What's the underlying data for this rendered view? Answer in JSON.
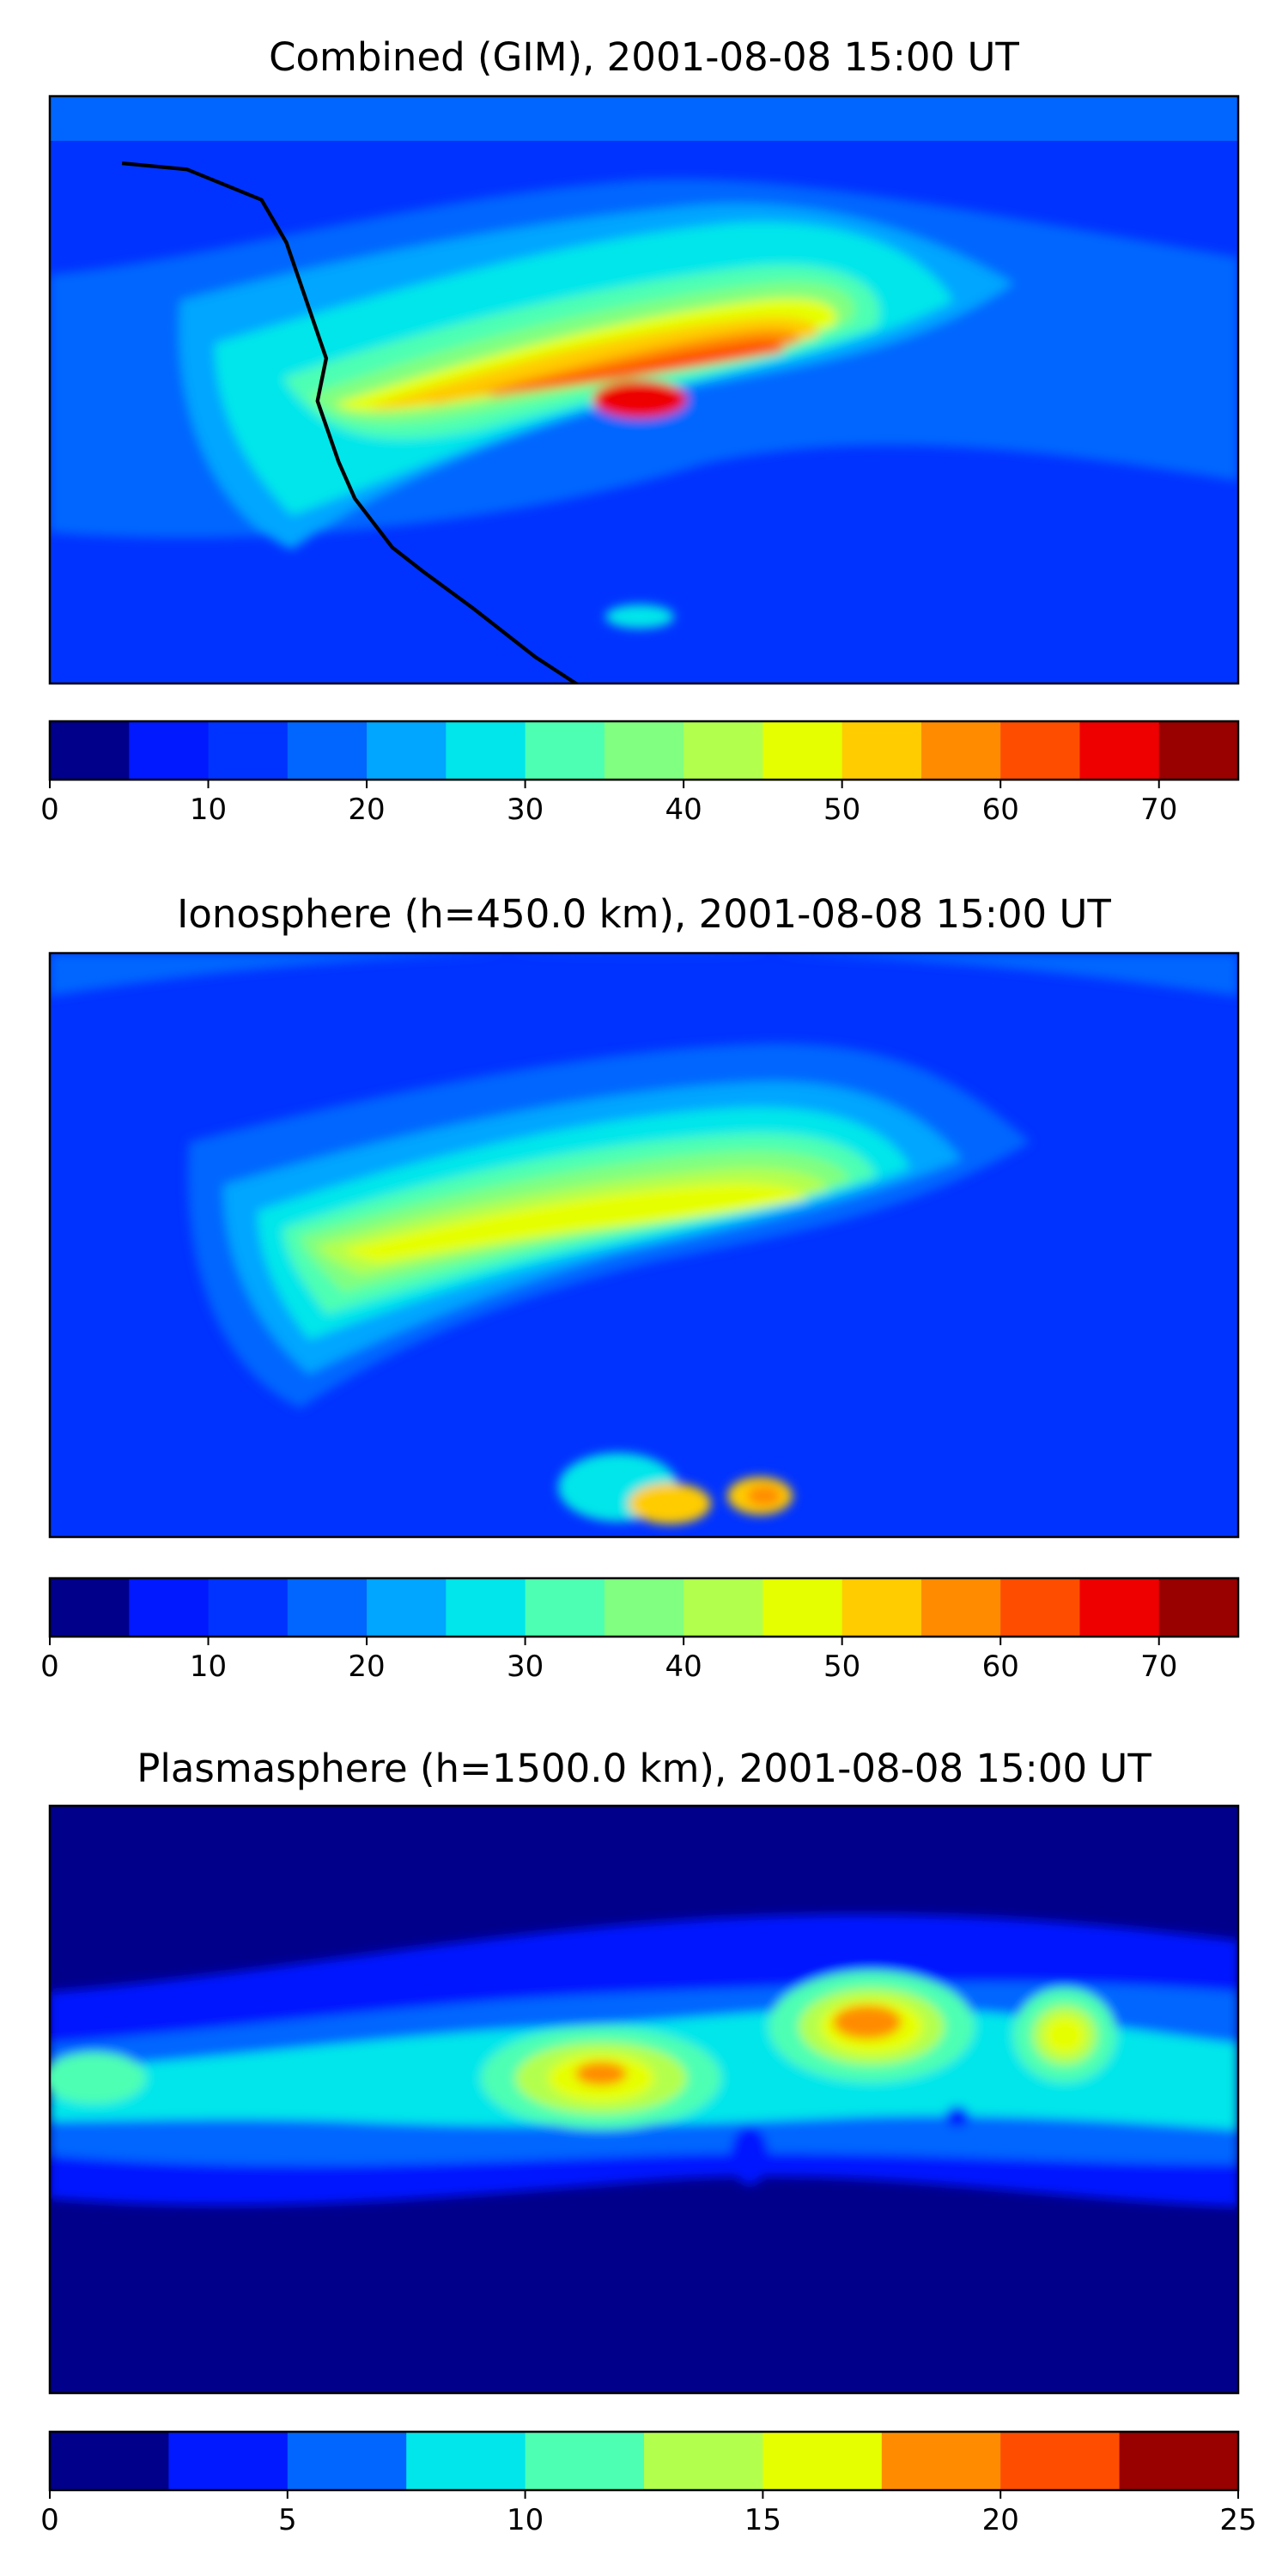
{
  "chart_data": [
    {
      "type": "heatmap",
      "title": "Combined (GIM), 2001-08-08 15:00 UT",
      "colorbar": {
        "range": [
          0,
          75
        ],
        "tick_labels": [
          "0",
          "10",
          "20",
          "30",
          "40",
          "50",
          "60",
          "70"
        ],
        "tick_values": [
          0,
          10,
          20,
          30,
          40,
          50,
          60,
          70
        ]
      },
      "colors": [
        "#00008b",
        "#0019ff",
        "#0033ff",
        "#0066ff",
        "#00a6ff",
        "#00e6ea",
        "#4dffb3",
        "#80ff80",
        "#b3ff4d",
        "#e6ff00",
        "#ffcc00",
        "#ff8c00",
        "#ff4d00",
        "#ee0000",
        "#990000"
      ],
      "features": [
        {
          "lon": -3,
          "lat": 3,
          "level": 13
        },
        {
          "lon": 5,
          "lat": 8,
          "level": 12
        },
        {
          "lon": 25,
          "lat": 10,
          "level": 12
        },
        {
          "lon": -50,
          "lat": -5,
          "level": 11
        },
        {
          "lon": 15,
          "lat": -5,
          "level": 10
        }
      ]
    },
    {
      "type": "heatmap",
      "title": "Ionosphere  (h=450.0 km), 2001-08-08 15:00 UT",
      "colorbar": {
        "range": [
          0,
          75
        ],
        "tick_labels": [
          "0",
          "10",
          "20",
          "30",
          "40",
          "50",
          "60",
          "70"
        ],
        "tick_values": [
          0,
          10,
          20,
          30,
          40,
          50,
          60,
          70
        ]
      },
      "colors": [
        "#00008b",
        "#0019ff",
        "#0033ff",
        "#0066ff",
        "#00a6ff",
        "#00e6ea",
        "#4dffb3",
        "#80ff80",
        "#b3ff4d",
        "#e6ff00",
        "#ffcc00",
        "#ff8c00",
        "#ff4d00",
        "#ee0000",
        "#990000"
      ],
      "features": [
        {
          "lon": 27,
          "lat": 2,
          "level": 10
        },
        {
          "lon": 5,
          "lat": 2,
          "level": 10
        },
        {
          "lon": -50,
          "lat": -8,
          "level": 9
        },
        {
          "lon": 15,
          "lat": 3,
          "level": 9
        }
      ]
    },
    {
      "type": "heatmap",
      "title": "Plasmasphere (h=1500.0 km), 2001-08-08 15:00 UT",
      "colorbar": {
        "range": [
          0,
          25
        ],
        "tick_labels": [
          "0",
          "5",
          "10",
          "15",
          "20",
          "25"
        ],
        "tick_values": [
          0,
          5,
          10,
          15,
          20,
          25
        ]
      },
      "colors": [
        "#00008b",
        "#0019ff",
        "#0066ff",
        "#00e6ea",
        "#4dffb3",
        "#b3ff4d",
        "#e6ff00",
        "#ff8c00",
        "#ff4d00",
        "#990000"
      ],
      "features": [
        {
          "lon": -15,
          "lat": 10,
          "level": 7
        },
        {
          "lon": 55,
          "lat": 25,
          "level": 7
        },
        {
          "lon": 110,
          "lat": 20,
          "level": 6
        },
        {
          "lon": 30,
          "lat": -15,
          "level": 1
        }
      ]
    }
  ]
}
